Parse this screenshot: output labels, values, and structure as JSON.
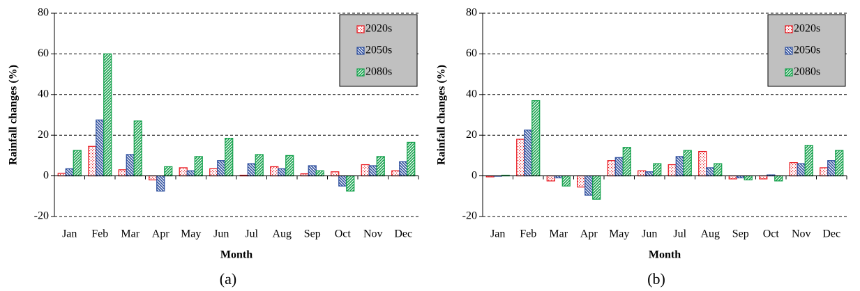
{
  "chart_data": [
    {
      "type": "bar",
      "caption": "(a)",
      "x_label": "Month",
      "y_label": "Rainfall changes (%)",
      "categories": [
        "Jan",
        "Feb",
        "Mar",
        "Apr",
        "May",
        "Jun",
        "Jul",
        "Aug",
        "Sep",
        "Oct",
        "Nov",
        "Dec"
      ],
      "series": [
        {
          "name": "2020s",
          "color": "#e8141c",
          "values": [
            1.2,
            14.5,
            3,
            -2,
            4,
            3.5,
            0.3,
            4.5,
            1,
            2,
            5.5,
            2.5
          ]
        },
        {
          "name": "2050s",
          "color": "#2e4f9e",
          "values": [
            3.5,
            27.5,
            10.5,
            -7.5,
            2.5,
            7.5,
            6,
            3.5,
            5,
            -5,
            5,
            7
          ]
        },
        {
          "name": "2080s",
          "color": "#12a04a",
          "values": [
            12.5,
            60,
            27,
            4.5,
            9.5,
            18.5,
            10.5,
            10,
            2.5,
            -7.5,
            9.5,
            16.5
          ]
        }
      ],
      "ylim": [
        -20,
        80
      ],
      "yticks": [
        -20,
        0,
        20,
        40,
        60,
        80
      ],
      "grid": true,
      "legend": "top-right"
    },
    {
      "type": "bar",
      "caption": "(b)",
      "x_label": "Month",
      "y_label": "Rainfall changes (%)",
      "categories": [
        "Jan",
        "Feb",
        "Mar",
        "Apr",
        "May",
        "Jun",
        "Jul",
        "Aug",
        "Sep",
        "Oct",
        "Nov",
        "Dec"
      ],
      "series": [
        {
          "name": "2020s",
          "color": "#e8141c",
          "values": [
            -0.5,
            18,
            -2.5,
            -5.5,
            7.5,
            2.5,
            5.5,
            12,
            -1.5,
            -1.5,
            6.5,
            4
          ]
        },
        {
          "name": "2050s",
          "color": "#2e4f9e",
          "values": [
            0,
            22.5,
            -1,
            -9.5,
            9,
            2,
            9.5,
            4,
            -1,
            0.5,
            6,
            7.5
          ]
        },
        {
          "name": "2080s",
          "color": "#12a04a",
          "values": [
            0.3,
            37,
            -5,
            -11.5,
            14,
            6,
            12.5,
            6,
            -2,
            -2.5,
            15,
            12.5
          ]
        }
      ],
      "ylim": [
        -20,
        80
      ],
      "yticks": [
        -20,
        0,
        20,
        40,
        60,
        80
      ],
      "grid": true,
      "legend": "top-right"
    }
  ]
}
